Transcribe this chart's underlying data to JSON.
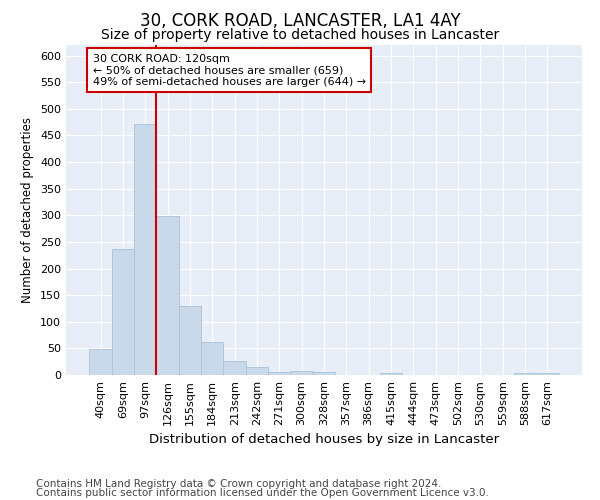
{
  "title": "30, CORK ROAD, LANCASTER, LA1 4AY",
  "subtitle": "Size of property relative to detached houses in Lancaster",
  "xlabel": "Distribution of detached houses by size in Lancaster",
  "ylabel": "Number of detached properties",
  "categories": [
    "40sqm",
    "69sqm",
    "97sqm",
    "126sqm",
    "155sqm",
    "184sqm",
    "213sqm",
    "242sqm",
    "271sqm",
    "300sqm",
    "328sqm",
    "357sqm",
    "386sqm",
    "415sqm",
    "444sqm",
    "473sqm",
    "502sqm",
    "530sqm",
    "559sqm",
    "588sqm",
    "617sqm"
  ],
  "values": [
    48,
    237,
    472,
    298,
    130,
    62,
    27,
    15,
    6,
    8,
    6,
    0,
    0,
    3,
    0,
    0,
    0,
    0,
    0,
    3,
    3
  ],
  "bar_color": "#c9d9ea",
  "bar_edge_color": "#aec6dc",
  "vline_x": 2.5,
  "vline_color": "#cc0000",
  "annotation_text": "30 CORK ROAD: 120sqm\n← 50% of detached houses are smaller (659)\n49% of semi-detached houses are larger (644) →",
  "annotation_box_facecolor": "#ffffff",
  "annotation_box_edgecolor": "#cc0000",
  "ylim": [
    0,
    620
  ],
  "yticks": [
    0,
    50,
    100,
    150,
    200,
    250,
    300,
    350,
    400,
    450,
    500,
    550,
    600
  ],
  "plot_bg_color": "#e8eef8",
  "fig_bg_color": "#ffffff",
  "grid_color": "#ffffff",
  "footer_line1": "Contains HM Land Registry data © Crown copyright and database right 2024.",
  "footer_line2": "Contains public sector information licensed under the Open Government Licence v3.0.",
  "title_fontsize": 12,
  "subtitle_fontsize": 10,
  "ylabel_fontsize": 8.5,
  "xlabel_fontsize": 9.5,
  "footer_fontsize": 7.5,
  "tick_fontsize": 8,
  "annot_fontsize": 8
}
